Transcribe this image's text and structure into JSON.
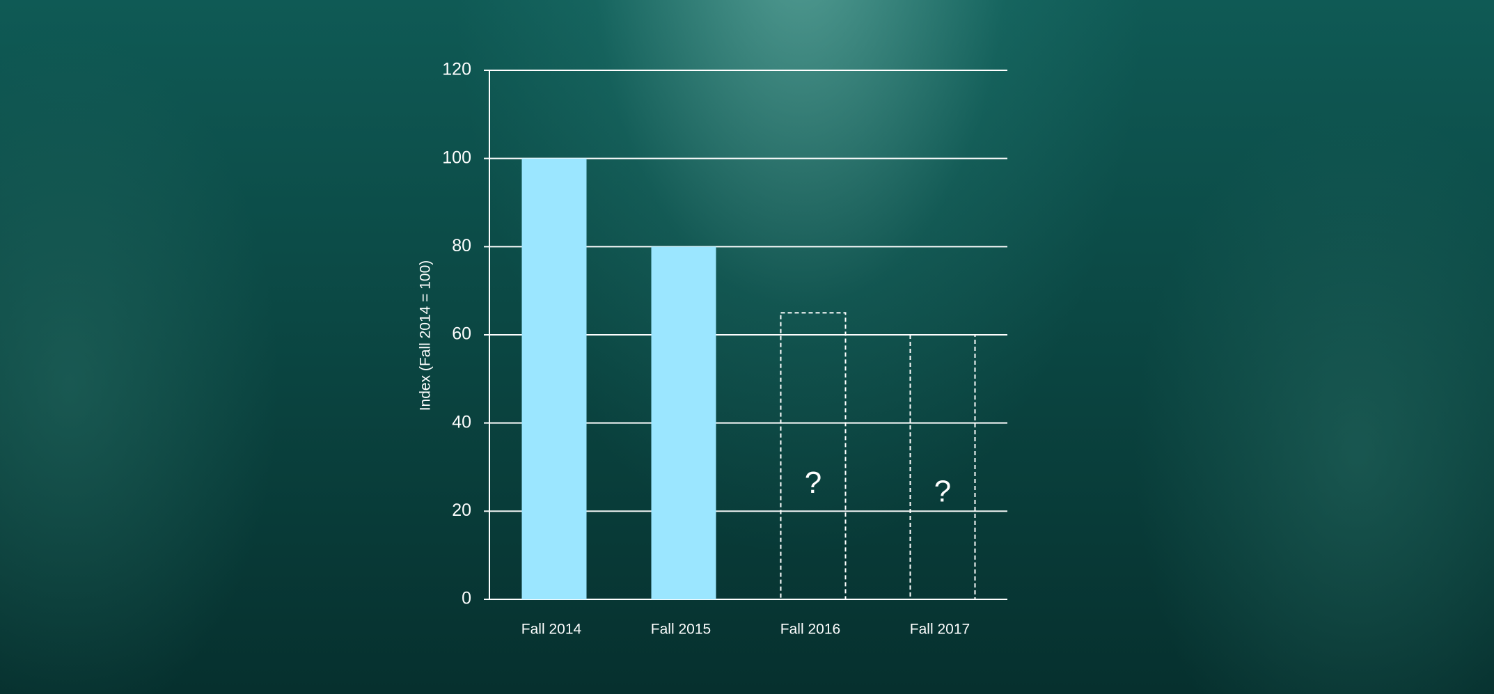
{
  "chart_data": {
    "type": "bar",
    "y_label": "Index (Fall 2014 = 100)",
    "categories": [
      "Fall 2014",
      "Fall 2015",
      "Fall 2016",
      "Fall 2017"
    ],
    "series": [
      {
        "color": "#9be6ff",
        "style": "solid",
        "values": [
          100,
          80,
          null,
          null
        ]
      },
      {
        "color": "#ffffff",
        "style": "dashed",
        "values": [
          null,
          null,
          65,
          60
        ],
        "value_labels": [
          null,
          null,
          "?",
          "?"
        ]
      }
    ],
    "ylim": [
      0,
      120
    ],
    "yticks": [
      0,
      20,
      40,
      60,
      80,
      100,
      120
    ],
    "grid": true
  }
}
